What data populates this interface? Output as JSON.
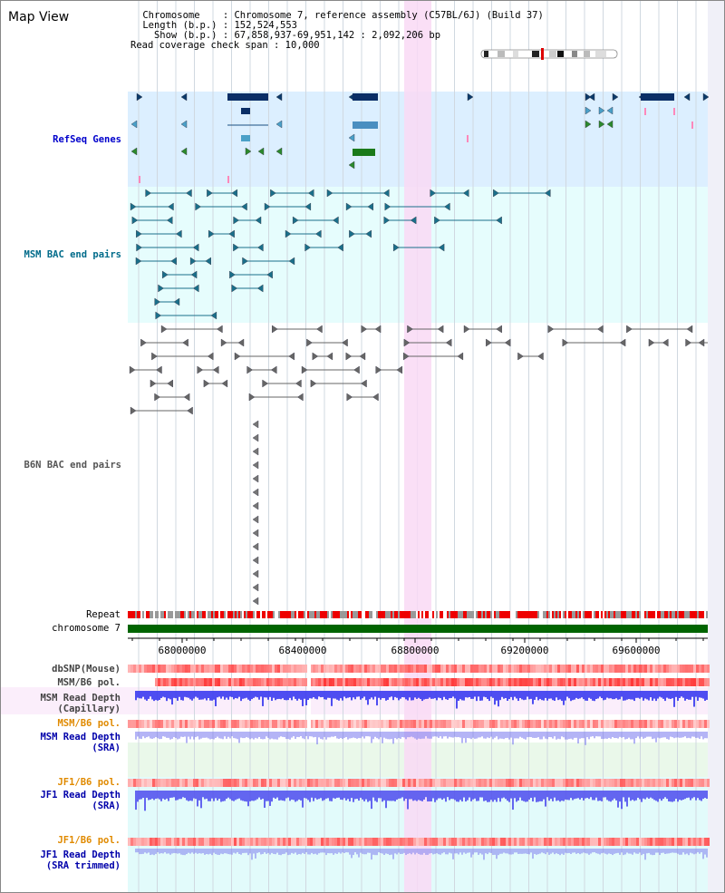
{
  "view": {
    "title": "Map View",
    "info_lines": [
      " Chromosome    : Chromosome 7, reference assembly (C57BL/6J) (Build 37)",
      " Length (b.p.) : 152,524,553",
      "   Show (b.p.) : 67,858,937-69,951,142 : 2,092,206 bp",
      "Read coverage check span : 10,000"
    ]
  },
  "tracks": {
    "refseq": {
      "label": "RefSeq Genes",
      "color": "#0000cc"
    },
    "msm_bac": {
      "label": "MSM BAC end pairs",
      "color": "#006b8a"
    },
    "b6n_bac": {
      "label": "B6N BAC end pairs",
      "color": "#555555"
    },
    "repeat": {
      "label": "Repeat"
    },
    "chromosome": {
      "label": "chromosome 7"
    },
    "dbsnp": {
      "label": "dbSNP(Mouse)"
    },
    "msm_b6_pol_1": {
      "label": "MSM/B6 pol."
    },
    "msm_depth_cap": {
      "label": "MSM Read Depth\n(Capillary)"
    },
    "msm_b6_pol_2": {
      "label": "MSM/B6 pol.",
      "color": "#e08a00"
    },
    "msm_depth_sra": {
      "label": "MSM Read Depth\n(SRA)",
      "color": "#0000aa"
    },
    "jf1_b6_pol_1": {
      "label": "JF1/B6 pol.",
      "color": "#e08a00"
    },
    "jf1_depth_sra": {
      "label": "JF1 Read Depth\n(SRA)",
      "color": "#0000aa"
    },
    "jf1_b6_pol_2": {
      "label": "JF1/B6 pol.",
      "color": "#e08a00"
    },
    "jf1_depth_trim": {
      "label": "JF1 Read Depth\n(SRA trimmed)",
      "color": "#0000aa"
    }
  },
  "axis": {
    "ticks": [
      "68000000",
      "68400000",
      "68800000",
      "69200000",
      "69600000"
    ]
  },
  "colors": {
    "refseq_bg": "#dcefff",
    "msm_bg": "#e6fdfd",
    "highlight": "#f9d9f5",
    "chromosome_bar": "#006400",
    "repeat_red": "#ee0000",
    "depth_blue": "#3333ee"
  }
}
